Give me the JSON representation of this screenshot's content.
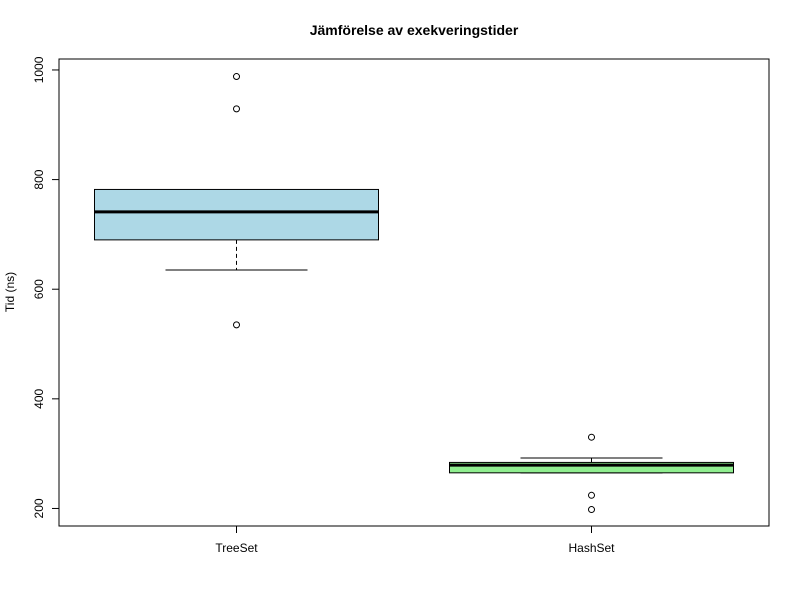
{
  "chart_data": {
    "type": "boxplot",
    "title": "Jämförelse av exekveringstider",
    "xlabel": "",
    "ylabel": "Tid (ns)",
    "ylim": [
      168,
      1020
    ],
    "yticks": [
      200,
      400,
      600,
      800,
      1000
    ],
    "grid": false,
    "categories": [
      "TreeSet",
      "HashSet"
    ],
    "series": [
      {
        "fill": "#add8e6",
        "whisker_low": 635,
        "q1": 690,
        "median": 741,
        "q3": 782,
        "whisker_high": 782,
        "outliers": [
          988,
          929,
          535
        ]
      },
      {
        "fill": "#90ee90",
        "whisker_low": 265,
        "q1": 265,
        "median": 279,
        "q3": 284,
        "whisker_high": 292,
        "outliers": [
          330,
          224,
          198
        ]
      }
    ]
  }
}
